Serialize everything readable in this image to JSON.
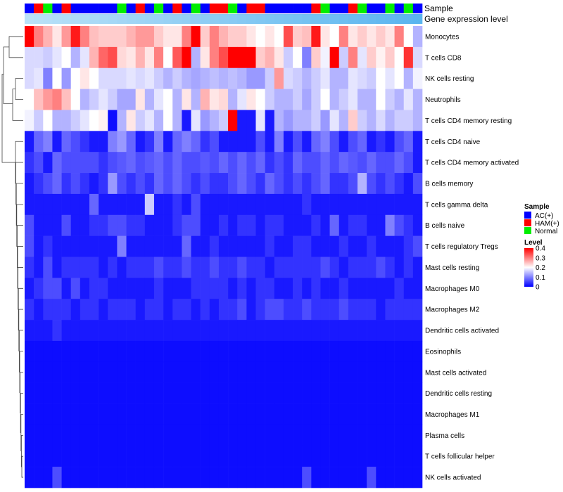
{
  "chart_data": {
    "type": "heatmap",
    "annotation_titles": [
      "Sample",
      "Gene expression level"
    ],
    "sample_groups": [
      "AC(+)",
      "HAM(+)",
      "Normal",
      "AC(+)",
      "HAM(+)",
      "AC(+)",
      "AC(+)",
      "AC(+)",
      "AC(+)",
      "AC(+)",
      "Normal",
      "AC(+)",
      "HAM(+)",
      "AC(+)",
      "Normal",
      "AC(+)",
      "HAM(+)",
      "AC(+)",
      "Normal",
      "AC(+)",
      "HAM(+)",
      "HAM(+)",
      "Normal",
      "AC(+)",
      "HAM(+)",
      "HAM(+)",
      "AC(+)",
      "AC(+)",
      "AC(+)",
      "AC(+)",
      "AC(+)",
      "HAM(+)",
      "Normal",
      "AC(+)",
      "AC(+)",
      "HAM(+)",
      "Normal",
      "AC(+)",
      "AC(+)",
      "Normal",
      "AC(+)",
      "Normal",
      "AC(+)"
    ],
    "expression_level": [
      0.05,
      0.08,
      0.1,
      0.12,
      0.14,
      0.16,
      0.18,
      0.2,
      0.22,
      0.24,
      0.26,
      0.28,
      0.3,
      0.32,
      0.34,
      0.36,
      0.38,
      0.4,
      0.42,
      0.44,
      0.46,
      0.48,
      0.5,
      0.52,
      0.54,
      0.56,
      0.58,
      0.6,
      0.62,
      0.64,
      0.66,
      0.68,
      0.7,
      0.72,
      0.74,
      0.76,
      0.78,
      0.8,
      0.82,
      0.84,
      0.86,
      0.88,
      0.9
    ],
    "rows": [
      "Monocytes",
      "T cells CD8",
      "NK cells resting",
      "Neutrophils",
      "T cells CD4 memory resting",
      "T cells CD4 naive",
      "T cells CD4 memory activated",
      "B cells memory",
      "T cells gamma delta",
      "B cells naive",
      "T cells regulatory  Tregs",
      "Mast cells resting",
      "Macrophages M0",
      "Macrophages M2",
      "Dendritic cells activated",
      "Eosinophils",
      "Mast cells activated",
      "Dendritic cells resting",
      "Macrophages M1",
      "Plasma cells",
      "T cells follicular helper",
      "NK cells activated"
    ],
    "values": [
      [
        0.4,
        0.3,
        0.26,
        0.22,
        0.28,
        0.38,
        0.3,
        0.25,
        0.24,
        0.24,
        0.24,
        0.26,
        0.28,
        0.28,
        0.24,
        0.22,
        0.22,
        0.3,
        0.4,
        0.24,
        0.3,
        0.26,
        0.24,
        0.24,
        0.22,
        0.2,
        0.22,
        0.2,
        0.34,
        0.24,
        0.25,
        0.38,
        0.22,
        0.2,
        0.3,
        0.22,
        0.24,
        0.22,
        0.24,
        0.22,
        0.3,
        0.2,
        0.14
      ],
      [
        0.17,
        0.17,
        0.16,
        0.18,
        0.2,
        0.14,
        0.18,
        0.26,
        0.32,
        0.34,
        0.23,
        0.22,
        0.26,
        0.22,
        0.3,
        0.2,
        0.33,
        0.4,
        0.14,
        0.22,
        0.3,
        0.34,
        0.4,
        0.4,
        0.4,
        0.24,
        0.26,
        0.22,
        0.16,
        0.2,
        0.1,
        0.24,
        0.19,
        0.4,
        0.16,
        0.3,
        0.18,
        0.24,
        0.21,
        0.24,
        0.2,
        0.36,
        0.17
      ],
      [
        0.17,
        0.18,
        0.1,
        0.2,
        0.12,
        0.2,
        0.22,
        0.2,
        0.17,
        0.17,
        0.17,
        0.18,
        0.17,
        0.18,
        0.16,
        0.14,
        0.16,
        0.14,
        0.13,
        0.14,
        0.15,
        0.14,
        0.15,
        0.14,
        0.12,
        0.12,
        0.16,
        0.28,
        0.17,
        0.16,
        0.14,
        0.16,
        0.18,
        0.14,
        0.14,
        0.18,
        0.17,
        0.16,
        0.2,
        0.18,
        0.2,
        0.14,
        0.19
      ],
      [
        0.2,
        0.25,
        0.28,
        0.3,
        0.25,
        0.2,
        0.14,
        0.16,
        0.18,
        0.16,
        0.13,
        0.13,
        0.22,
        0.14,
        0.18,
        0.2,
        0.14,
        0.22,
        0.14,
        0.26,
        0.22,
        0.23,
        0.14,
        0.18,
        0.22,
        0.2,
        0.16,
        0.14,
        0.14,
        0.16,
        0.13,
        0.16,
        0.2,
        0.14,
        0.16,
        0.18,
        0.14,
        0.14,
        0.2,
        0.16,
        0.14,
        0.18,
        0.14
      ],
      [
        0.19,
        0.16,
        0.2,
        0.14,
        0.14,
        0.16,
        0.18,
        0.2,
        0.21,
        0.01,
        0.14,
        0.22,
        0.16,
        0.18,
        0.14,
        0.2,
        0.14,
        0.02,
        0.18,
        0.12,
        0.14,
        0.16,
        0.4,
        0.02,
        0.02,
        0.18,
        0.02,
        0.14,
        0.12,
        0.14,
        0.14,
        0.16,
        0.12,
        0.18,
        0.14,
        0.24,
        0.16,
        0.14,
        0.17,
        0.14,
        0.16,
        0.16,
        0.14
      ],
      [
        0.02,
        0.08,
        0.1,
        0.02,
        0.08,
        0.06,
        0.04,
        0.02,
        0.02,
        0.1,
        0.12,
        0.08,
        0.02,
        0.04,
        0.1,
        0.02,
        0.08,
        0.1,
        0.08,
        0.04,
        0.06,
        0.02,
        0.02,
        0.02,
        0.02,
        0.06,
        0.02,
        0.1,
        0.02,
        0.06,
        0.02,
        0.08,
        0.1,
        0.06,
        0.02,
        0.06,
        0.08,
        0.02,
        0.04,
        0.02,
        0.06,
        0.08,
        0.02
      ],
      [
        0.04,
        0.06,
        0.02,
        0.08,
        0.06,
        0.06,
        0.06,
        0.06,
        0.04,
        0.06,
        0.07,
        0.08,
        0.06,
        0.07,
        0.08,
        0.06,
        0.08,
        0.06,
        0.06,
        0.07,
        0.06,
        0.08,
        0.06,
        0.08,
        0.06,
        0.08,
        0.04,
        0.06,
        0.04,
        0.08,
        0.06,
        0.06,
        0.08,
        0.06,
        0.08,
        0.07,
        0.06,
        0.08,
        0.06,
        0.06,
        0.08,
        0.06,
        0.02
      ],
      [
        0.02,
        0.04,
        0.06,
        0.08,
        0.04,
        0.06,
        0.04,
        0.02,
        0.04,
        0.12,
        0.06,
        0.04,
        0.06,
        0.04,
        0.08,
        0.06,
        0.08,
        0.06,
        0.04,
        0.06,
        0.04,
        0.04,
        0.06,
        0.08,
        0.06,
        0.04,
        0.08,
        0.06,
        0.04,
        0.06,
        0.04,
        0.06,
        0.08,
        0.04,
        0.04,
        0.06,
        0.14,
        0.06,
        0.04,
        0.06,
        0.04,
        0.02,
        0.06
      ],
      [
        0.02,
        0.02,
        0.02,
        0.02,
        0.02,
        0.02,
        0.02,
        0.08,
        0.02,
        0.02,
        0.02,
        0.02,
        0.02,
        0.16,
        0.02,
        0.02,
        0.04,
        0.02,
        0.06,
        0.02,
        0.02,
        0.02,
        0.02,
        0.02,
        0.02,
        0.02,
        0.02,
        0.02,
        0.02,
        0.02,
        0.04,
        0.02,
        0.02,
        0.02,
        0.02,
        0.02,
        0.02,
        0.02,
        0.02,
        0.02,
        0.02,
        0.02,
        0.02
      ],
      [
        0.06,
        0.02,
        0.02,
        0.02,
        0.06,
        0.02,
        0.02,
        0.04,
        0.04,
        0.06,
        0.06,
        0.04,
        0.04,
        0.02,
        0.02,
        0.02,
        0.04,
        0.06,
        0.06,
        0.02,
        0.02,
        0.04,
        0.02,
        0.04,
        0.04,
        0.02,
        0.04,
        0.04,
        0.02,
        0.02,
        0.02,
        0.04,
        0.02,
        0.08,
        0.02,
        0.04,
        0.04,
        0.02,
        0.02,
        0.1,
        0.06,
        0.04,
        0.02
      ],
      [
        0.06,
        0.02,
        0.04,
        0.02,
        0.02,
        0.02,
        0.02,
        0.02,
        0.02,
        0.02,
        0.1,
        0.02,
        0.02,
        0.02,
        0.02,
        0.02,
        0.02,
        0.08,
        0.02,
        0.02,
        0.04,
        0.02,
        0.02,
        0.02,
        0.02,
        0.02,
        0.04,
        0.02,
        0.02,
        0.04,
        0.04,
        0.02,
        0.02,
        0.02,
        0.04,
        0.02,
        0.02,
        0.04,
        0.02,
        0.02,
        0.02,
        0.04,
        0.06
      ],
      [
        0.04,
        0.02,
        0.06,
        0.02,
        0.04,
        0.04,
        0.04,
        0.04,
        0.02,
        0.04,
        0.02,
        0.04,
        0.04,
        0.04,
        0.06,
        0.04,
        0.04,
        0.06,
        0.04,
        0.04,
        0.06,
        0.04,
        0.04,
        0.06,
        0.04,
        0.04,
        0.02,
        0.04,
        0.04,
        0.04,
        0.04,
        0.04,
        0.06,
        0.04,
        0.02,
        0.04,
        0.04,
        0.04,
        0.06,
        0.04,
        0.02,
        0.04,
        0.02
      ],
      [
        0.02,
        0.04,
        0.06,
        0.06,
        0.02,
        0.06,
        0.02,
        0.04,
        0.04,
        0.02,
        0.02,
        0.02,
        0.02,
        0.02,
        0.04,
        0.02,
        0.02,
        0.02,
        0.04,
        0.04,
        0.04,
        0.04,
        0.02,
        0.04,
        0.02,
        0.04,
        0.04,
        0.02,
        0.02,
        0.04,
        0.02,
        0.04,
        0.02,
        0.02,
        0.04,
        0.02,
        0.02,
        0.02,
        0.02,
        0.02,
        0.04,
        0.02,
        0.02
      ],
      [
        0.04,
        0.02,
        0.04,
        0.04,
        0.04,
        0.02,
        0.04,
        0.04,
        0.02,
        0.04,
        0.04,
        0.04,
        0.02,
        0.04,
        0.04,
        0.02,
        0.04,
        0.04,
        0.02,
        0.04,
        0.02,
        0.04,
        0.04,
        0.06,
        0.02,
        0.04,
        0.06,
        0.06,
        0.04,
        0.04,
        0.06,
        0.04,
        0.04,
        0.04,
        0.06,
        0.04,
        0.04,
        0.04,
        0.02,
        0.04,
        0.04,
        0.04,
        0.04
      ],
      [
        0.02,
        0.02,
        0.02,
        0.04,
        0.02,
        0.02,
        0.02,
        0.02,
        0.02,
        0.02,
        0.02,
        0.02,
        0.02,
        0.02,
        0.02,
        0.02,
        0.02,
        0.02,
        0.02,
        0.02,
        0.02,
        0.02,
        0.02,
        0.02,
        0.02,
        0.02,
        0.02,
        0.02,
        0.02,
        0.02,
        0.02,
        0.02,
        0.02,
        0.02,
        0.02,
        0.02,
        0.02,
        0.02,
        0.02,
        0.02,
        0.02,
        0.02,
        0.02
      ],
      [
        0.01,
        0.01,
        0.01,
        0.01,
        0.01,
        0.01,
        0.01,
        0.01,
        0.01,
        0.01,
        0.01,
        0.01,
        0.01,
        0.01,
        0.01,
        0.01,
        0.01,
        0.01,
        0.01,
        0.01,
        0.01,
        0.01,
        0.01,
        0.01,
        0.01,
        0.01,
        0.01,
        0.01,
        0.01,
        0.01,
        0.01,
        0.01,
        0.01,
        0.01,
        0.01,
        0.01,
        0.01,
        0.01,
        0.01,
        0.01,
        0.01,
        0.01,
        0.01
      ],
      [
        0.01,
        0.01,
        0.01,
        0.01,
        0.01,
        0.01,
        0.01,
        0.01,
        0.01,
        0.01,
        0.01,
        0.01,
        0.01,
        0.01,
        0.01,
        0.01,
        0.01,
        0.01,
        0.01,
        0.01,
        0.01,
        0.01,
        0.01,
        0.01,
        0.01,
        0.01,
        0.01,
        0.01,
        0.01,
        0.01,
        0.01,
        0.01,
        0.01,
        0.01,
        0.01,
        0.01,
        0.01,
        0.01,
        0.01,
        0.01,
        0.01,
        0.01,
        0.01
      ],
      [
        0.01,
        0.01,
        0.01,
        0.01,
        0.01,
        0.01,
        0.01,
        0.01,
        0.01,
        0.01,
        0.01,
        0.01,
        0.01,
        0.01,
        0.01,
        0.01,
        0.01,
        0.01,
        0.01,
        0.01,
        0.01,
        0.01,
        0.01,
        0.01,
        0.01,
        0.01,
        0.01,
        0.01,
        0.01,
        0.01,
        0.01,
        0.01,
        0.01,
        0.01,
        0.01,
        0.01,
        0.01,
        0.01,
        0.01,
        0.01,
        0.01,
        0.01,
        0.01
      ],
      [
        0.01,
        0.01,
        0.01,
        0.01,
        0.01,
        0.01,
        0.01,
        0.01,
        0.01,
        0.01,
        0.01,
        0.01,
        0.01,
        0.01,
        0.01,
        0.01,
        0.01,
        0.01,
        0.01,
        0.01,
        0.01,
        0.01,
        0.01,
        0.01,
        0.01,
        0.01,
        0.01,
        0.01,
        0.01,
        0.01,
        0.01,
        0.01,
        0.01,
        0.01,
        0.01,
        0.01,
        0.01,
        0.01,
        0.01,
        0.01,
        0.01,
        0.01,
        0.01
      ],
      [
        0.01,
        0.01,
        0.01,
        0.01,
        0.01,
        0.01,
        0.01,
        0.01,
        0.01,
        0.01,
        0.01,
        0.01,
        0.01,
        0.01,
        0.01,
        0.01,
        0.01,
        0.01,
        0.01,
        0.01,
        0.01,
        0.01,
        0.01,
        0.01,
        0.01,
        0.01,
        0.01,
        0.01,
        0.01,
        0.01,
        0.01,
        0.01,
        0.01,
        0.01,
        0.01,
        0.01,
        0.01,
        0.01,
        0.01,
        0.01,
        0.01,
        0.01,
        0.01
      ],
      [
        0.01,
        0.01,
        0.01,
        0.01,
        0.01,
        0.01,
        0.01,
        0.01,
        0.01,
        0.01,
        0.01,
        0.01,
        0.01,
        0.01,
        0.01,
        0.01,
        0.01,
        0.01,
        0.01,
        0.01,
        0.01,
        0.01,
        0.01,
        0.01,
        0.01,
        0.01,
        0.01,
        0.01,
        0.01,
        0.01,
        0.01,
        0.01,
        0.01,
        0.01,
        0.01,
        0.01,
        0.01,
        0.01,
        0.01,
        0.01,
        0.01,
        0.01,
        0.01
      ],
      [
        0.01,
        0.01,
        0.01,
        0.06,
        0.01,
        0.01,
        0.01,
        0.01,
        0.01,
        0.01,
        0.01,
        0.01,
        0.01,
        0.01,
        0.01,
        0.01,
        0.01,
        0.01,
        0.01,
        0.01,
        0.01,
        0.01,
        0.01,
        0.01,
        0.01,
        0.01,
        0.01,
        0.01,
        0.01,
        0.01,
        0.06,
        0.01,
        0.01,
        0.01,
        0.01,
        0.01,
        0.01,
        0.06,
        0.01,
        0.01,
        0.01,
        0.01,
        0.01
      ]
    ],
    "sample_colors": {
      "AC(+)": "#0000ff",
      "HAM(+)": "#ff0000",
      "Normal": "#00ee00"
    },
    "expression_colors": {
      "low": "#c0e4f8",
      "high": "#4fb0ee"
    },
    "level_colors": {
      "low": "#0000ff",
      "mid": "#ffffff",
      "high": "#ff0000"
    },
    "level_range": [
      0,
      0.4
    ],
    "legend": {
      "sample_title": "Sample",
      "sample_labels": [
        "AC(+)",
        "HAM(+)",
        "Normal"
      ],
      "level_title": "Level",
      "level_ticks": [
        "0.4",
        "0.3",
        "0.2",
        "0.1",
        "0"
      ],
      "placement": "right"
    }
  }
}
